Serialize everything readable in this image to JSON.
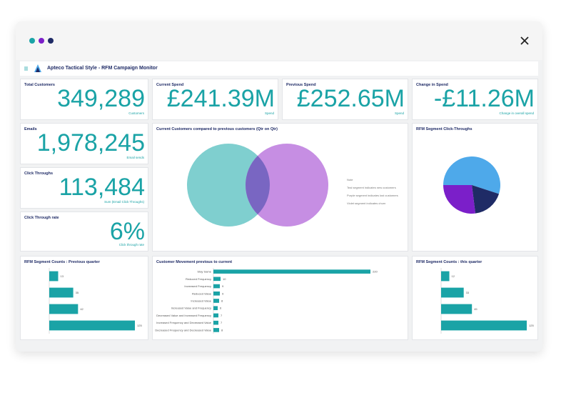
{
  "header": {
    "title": "Apteco Tactical Style - RFM Campaign Monitor"
  },
  "kpis": [
    {
      "title": "Total Customers",
      "value": "349,289",
      "caption": "Customers"
    },
    {
      "title": "Current Spend",
      "value": "£241.39M",
      "caption": "Spend"
    },
    {
      "title": "Previous Spend",
      "value": "£252.65M",
      "caption": "Spend"
    },
    {
      "title": "Change in Spend",
      "value": "-£11.26M",
      "caption": "Change in overall spend"
    },
    {
      "title": "Emails",
      "value": "1,978,245",
      "caption": "Email sends"
    },
    {
      "title": "Click Throughs",
      "value": "113,484",
      "caption": "Sum (Email Click Throughs)"
    },
    {
      "title": "Click Through rate",
      "value": "6%",
      "caption": "Click through rate"
    }
  ],
  "venn": {
    "title": "Current Customers compared to previous customers (Qtr on Qtr)",
    "notes": [
      "Note",
      "Teal segment indicates new customers",
      "Purple segment indicates lost customers",
      "Violet segment indicates churn"
    ]
  },
  "pie": {
    "title": "RFM Segment Click-Throughs",
    "values": [
      55,
      18,
      27
    ],
    "colors": [
      "#4ea9ea",
      "#1f2b66",
      "#7b1fc9"
    ]
  },
  "bar_charts": [
    {
      "title": "RFM Segment Counts : Previous quarter",
      "values": [
        13,
        35,
        42,
        125
      ],
      "color": "#1aa3a6"
    },
    {
      "title": "Customer Movement previous to current",
      "categories": [
        "Stay Same",
        "Reduced Frequency",
        "Increased Frequency",
        "Reduced Value",
        "Increased Value",
        "Increased Value and Frequency",
        "Decreased Value and Increased Frequency",
        "Increased Frequency and Decreased Value",
        "Decreased Frequency and Decreased Value"
      ],
      "values": [
        220,
        10,
        9,
        9,
        8,
        6,
        7,
        7,
        8
      ],
      "color": "#1aa3a6"
    },
    {
      "title": "RFM Segment Counts : this quarter",
      "values": [
        12,
        33,
        45,
        125
      ],
      "color": "#1aa3a6"
    }
  ]
}
